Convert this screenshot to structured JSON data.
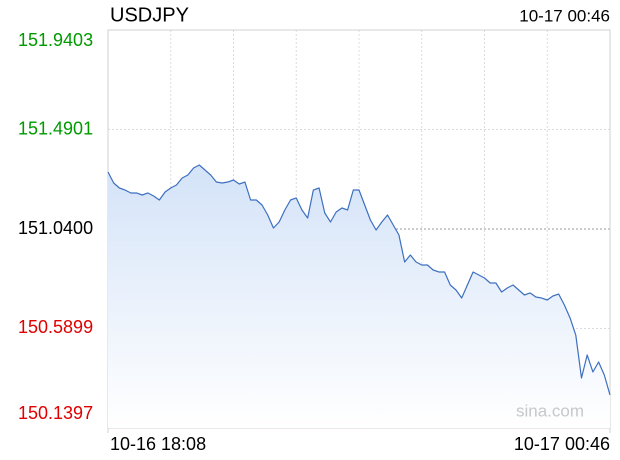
{
  "chart_data": {
    "type": "area",
    "title": "USDJPY",
    "timestamp": "10-17 00:46",
    "watermark": "sina.com",
    "categories": [
      "10-16 18:08",
      null,
      null,
      null,
      null,
      null,
      null,
      null,
      null,
      null,
      null,
      null,
      null,
      null,
      null,
      null,
      null,
      null,
      null,
      null,
      null,
      null,
      null,
      null,
      null,
      null,
      null,
      null,
      null,
      null,
      null,
      null,
      null,
      null,
      null,
      null,
      null,
      null,
      null,
      null,
      null,
      null,
      null,
      null,
      null,
      null,
      null,
      null,
      null,
      null,
      null,
      null,
      null,
      null,
      null,
      null,
      null,
      null,
      null,
      null,
      null,
      null,
      null,
      null,
      null,
      null,
      null,
      null,
      null,
      null,
      null,
      null,
      null,
      null,
      null,
      null,
      null,
      null,
      null,
      null,
      null,
      null,
      null,
      null,
      null,
      null,
      null,
      null,
      "10-17 00:46"
    ],
    "series": [
      {
        "name": "USDJPY",
        "color": "#3d6fc0",
        "values": [
          151.2979,
          151.2481,
          151.2255,
          151.2164,
          151.2029,
          151.2029,
          151.1938,
          151.2029,
          151.1893,
          151.1712,
          151.2074,
          151.2255,
          151.2391,
          151.2707,
          151.2843,
          151.316,
          151.3295,
          151.3069,
          151.2843,
          151.2526,
          151.2481,
          151.2526,
          151.2617,
          151.2436,
          151.2526,
          151.1712,
          151.1712,
          151.1486,
          151.1033,
          151.0445,
          151.0717,
          151.126,
          151.1712,
          151.1803,
          151.126,
          151.0898,
          151.2164,
          151.2255,
          151.1124,
          151.0717,
          151.1169,
          151.135,
          151.126,
          151.2164,
          151.2164,
          151.1486,
          151.0807,
          151.0355,
          151.0717,
          151.1033,
          151.0581,
          151.0129,
          150.8907,
          150.9224,
          150.8907,
          150.8771,
          150.8771,
          150.8545,
          150.8455,
          150.8455,
          150.7867,
          150.764,
          150.7278,
          150.7867,
          150.8455,
          150.8319,
          150.8183,
          150.7957,
          150.7957,
          150.755,
          150.7731,
          150.7867,
          150.764,
          150.7414,
          150.7505,
          150.7324,
          150.7278,
          150.7188,
          150.7369,
          150.7459,
          150.6962,
          150.6374,
          150.5604,
          150.3659,
          150.47,
          150.3931,
          150.4383,
          150.3795,
          150.289
        ]
      }
    ],
    "ylim": [
      150.1397,
      151.9403
    ],
    "yticks": [
      151.9403,
      151.4901,
      {
        "value": 151.04,
        "label": "151.0400"
      },
      150.5899,
      150.1397
    ],
    "tick_colors": {
      "up": "#009a00",
      "flat": "#000000",
      "down": "#e00000"
    },
    "grid": true
  }
}
